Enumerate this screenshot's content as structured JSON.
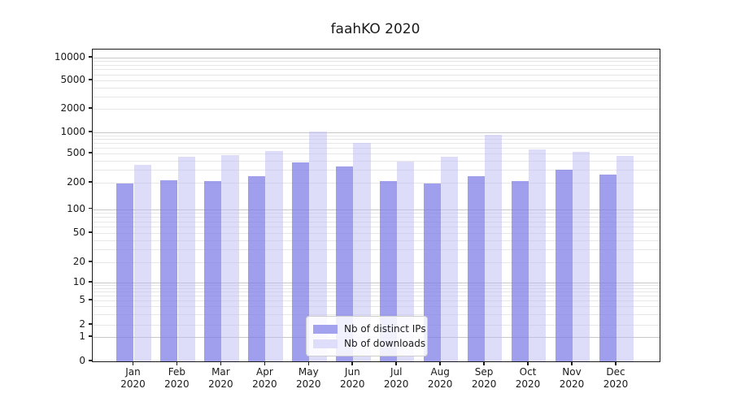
{
  "chart_data": {
    "type": "bar",
    "title": "faahKO 2020",
    "categories": [
      "Jan",
      "Feb",
      "Mar",
      "Apr",
      "May",
      "Jun",
      "Jul",
      "Aug",
      "Sep",
      "Oct",
      "Nov",
      "Dec"
    ],
    "category_sublabel": "2020",
    "series": [
      {
        "name": "Nb of distinct IPs",
        "color": "#a2a2ef",
        "values": [
          195,
          215,
          210,
          245,
          380,
          330,
          210,
          195,
          245,
          210,
          300,
          260
        ]
      },
      {
        "name": "Nb of downloads",
        "color": "#dedefa",
        "values": [
          355,
          450,
          470,
          545,
          1020,
          700,
          390,
          455,
          920,
          570,
          535,
          460
        ]
      }
    ],
    "y_ticks": [
      0,
      1,
      2,
      5,
      10,
      20,
      50,
      100,
      200,
      500,
      1000,
      2000,
      5000,
      10000
    ],
    "yscale": "log-with-zero",
    "ylim": [
      0,
      13000
    ],
    "xlabel": "",
    "ylabel": "",
    "grid": true,
    "legend_position": "inside-bottom-center"
  },
  "colors": {
    "bar_dark": "#a2a2ef",
    "bar_light": "#dedefa",
    "major_grid": "#c8c8c8",
    "minor_grid": "#e7e7e7",
    "axis": "#1a1a1a",
    "background": "#ffffff"
  }
}
